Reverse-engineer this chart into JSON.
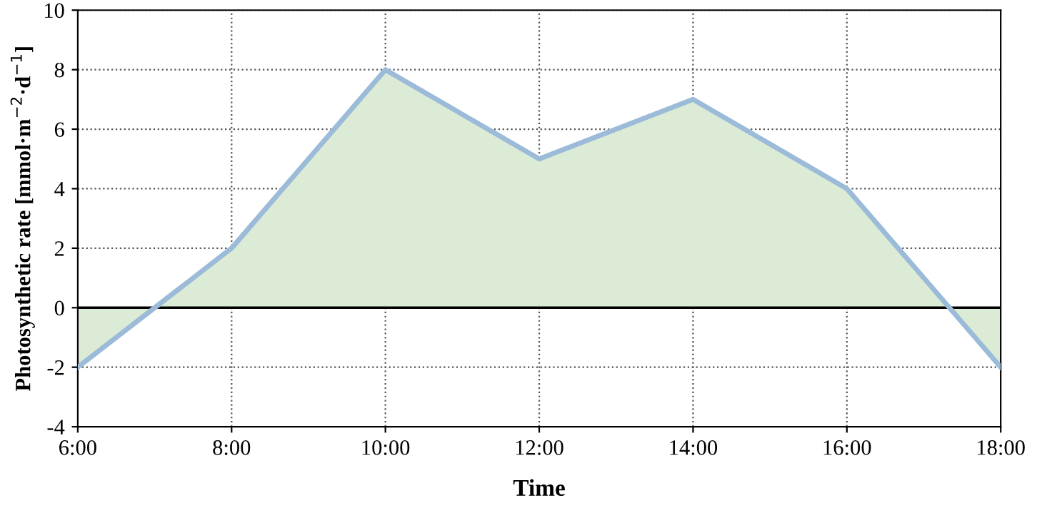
{
  "chart_data": {
    "type": "area",
    "xlabel": "Time",
    "ylabel": "Photosynthetic rate [mmol·m$^{−2}$·d$^{−1}$]",
    "x": [
      6,
      8,
      10,
      12,
      14,
      16,
      18
    ],
    "series": [
      {
        "color": "#dcebd5",
        "values": [
          -2,
          2,
          8,
          5,
          7,
          4,
          -2
        ]
      }
    ],
    "xlim": [
      6,
      18
    ],
    "xticks": [
      {
        "value": 6,
        "label": "6:00"
      },
      {
        "value": 8,
        "label": "8:00"
      },
      {
        "value": 10,
        "label": "10:00"
      },
      {
        "value": 12,
        "label": "12:00"
      },
      {
        "value": 14,
        "label": "14:00"
      },
      {
        "value": 16,
        "label": "16:00"
      },
      {
        "value": 18,
        "label": "18:00"
      }
    ],
    "ylim": [
      -4,
      10
    ],
    "yticks": [
      -4,
      -2,
      0,
      2,
      4,
      6,
      8,
      10
    ],
    "ref_lines": [
      {
        "axis": "y",
        "value": 0,
        "color": "#000000"
      }
    ],
    "grid": true,
    "line_style": "solid",
    "marker": "none"
  }
}
